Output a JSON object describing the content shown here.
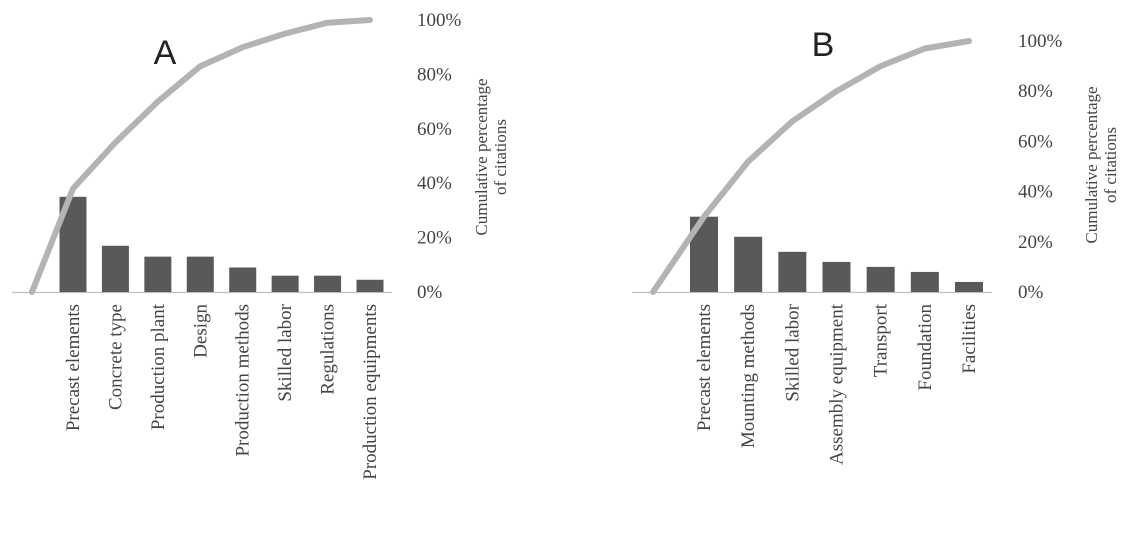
{
  "colors": {
    "bar": "#595959",
    "cumulative_line": "#b3b3b3",
    "axis": "#bfbfbf",
    "text": "#444444"
  },
  "chart_data": [
    {
      "type": "bar",
      "title": "A",
      "categories": [
        "Precast elements",
        "Concrete type",
        "Production plant",
        "Design",
        "Production methods",
        "Skilled labor",
        "Regulations",
        "Production equipments"
      ],
      "values": [
        35,
        17,
        13,
        13,
        9,
        6,
        6,
        4.5
      ],
      "cumulative_series": {
        "x": [
          0,
          0.5,
          1.5,
          2.5,
          3.5,
          4.5,
          5.5,
          6.5,
          7.5
        ],
        "y": [
          0,
          38,
          55,
          70,
          83,
          90,
          95,
          99,
          100
        ]
      },
      "y2label_lines": [
        "Cumulative percentage",
        "of citations"
      ],
      "y2_ticks": [
        "0%",
        "20%",
        "40%",
        "60%",
        "80%",
        "100%"
      ],
      "ylim": [
        0,
        100
      ]
    },
    {
      "type": "bar",
      "title": "B",
      "categories": [
        "Precast elements",
        "Mounting methods",
        "Skilled labor",
        "Assembly equipment",
        "Transport",
        "Foundation",
        "Facilities"
      ],
      "values": [
        30,
        22,
        16,
        12,
        10,
        8,
        4
      ],
      "cumulative_series": {
        "x": [
          0,
          0.5,
          1.5,
          2.5,
          3.5,
          4.5,
          5.5,
          6.5
        ],
        "y": [
          0,
          30,
          52,
          68,
          80,
          90,
          97,
          100
        ]
      },
      "y2label_lines": [
        "Cumulative percentage",
        "of citations"
      ],
      "y2_ticks": [
        "0%",
        "20%",
        "40%",
        "60%",
        "80%",
        "100%"
      ],
      "ylim": [
        0,
        100
      ]
    }
  ]
}
